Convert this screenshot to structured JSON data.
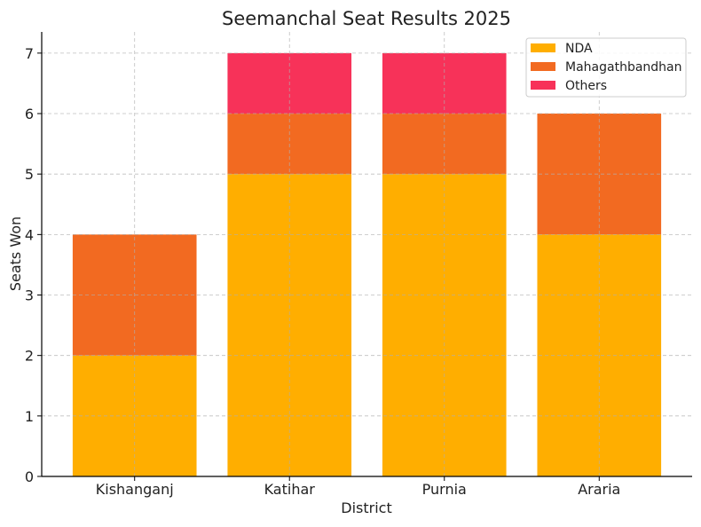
{
  "chart_data": {
    "type": "bar",
    "stacked": true,
    "title": "Seemanchal Seat Results 2025",
    "xlabel": "District",
    "ylabel": "Seats Won",
    "categories": [
      "Kishanganj",
      "Katihar",
      "Purnia",
      "Araria"
    ],
    "series": [
      {
        "name": "NDA",
        "values": [
          2,
          5,
          5,
          4
        ],
        "color": "#FFAE00"
      },
      {
        "name": "Mahagathbandhan",
        "values": [
          2,
          1,
          1,
          2
        ],
        "color": "#F26A21"
      },
      {
        "name": "Others",
        "values": [
          0,
          1,
          1,
          0
        ],
        "color": "#F73259"
      }
    ],
    "ylim": [
      0,
      7.35
    ],
    "yticks": [
      0,
      1,
      2,
      3,
      4,
      5,
      6,
      7
    ],
    "grid": true,
    "legend": "top-right"
  }
}
